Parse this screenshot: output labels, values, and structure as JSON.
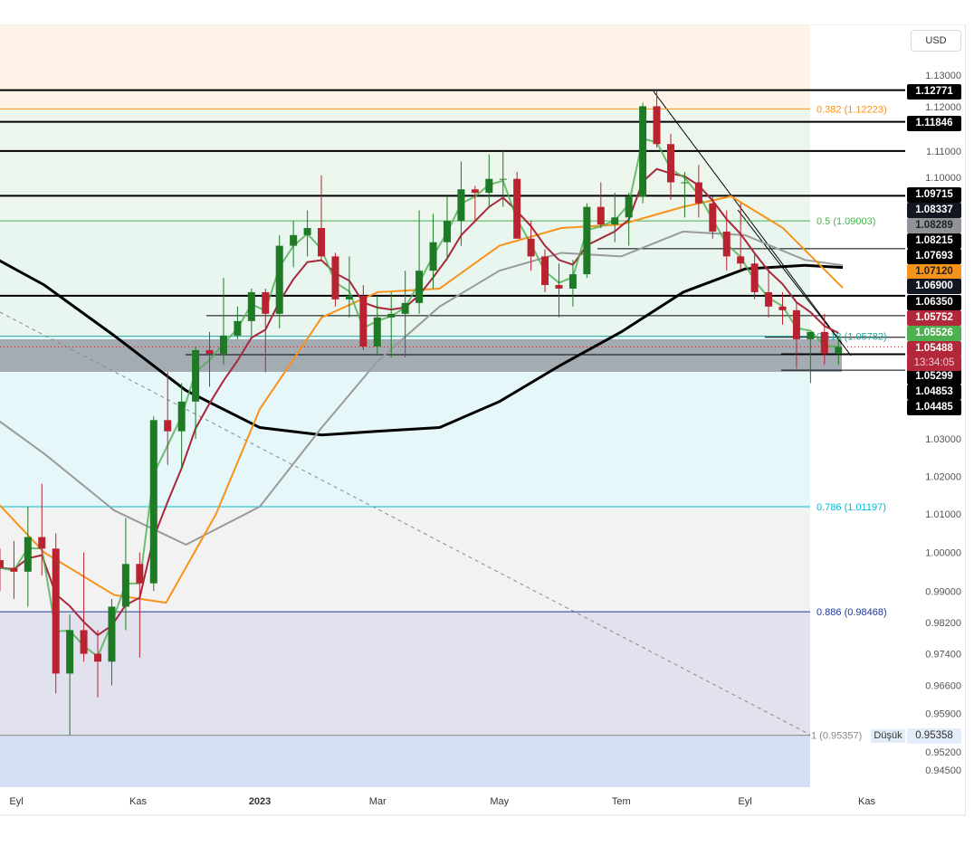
{
  "currency_button": "USD",
  "chart_data": {
    "type": "candlestick",
    "scale": "log",
    "ylim": [
      0.945,
      1.13
    ],
    "x_tick_labels": [
      "Eyl",
      "Kas",
      "2023",
      "Mar",
      "May",
      "Tem",
      "Eyl",
      "Kas"
    ],
    "x_tick_dates": [
      "2022-09-01",
      "2022-11-01",
      "2023-01-01",
      "2023-03-01",
      "2023-05-01",
      "2023-07-01",
      "2023-09-01",
      "2023-11-01"
    ],
    "y_tick_labels": [
      "1.13000",
      "1.12000",
      "1.11000",
      "1.10000",
      "1.03000",
      "1.02000",
      "1.01000",
      "1.00000",
      "0.99000",
      "0.98200",
      "0.97400",
      "0.96600",
      "0.95900",
      "0.95200",
      "0.94500"
    ],
    "ohlc_columns": [
      "date",
      "open",
      "high",
      "low",
      "close"
    ],
    "ohlc": [
      [
        "2022-08-22",
        0.998,
        1.001,
        0.99,
        0.996
      ],
      [
        "2022-08-29",
        0.996,
        1.003,
        0.988,
        0.995
      ],
      [
        "2022-09-05",
        0.995,
        1.012,
        0.986,
        1.004
      ],
      [
        "2022-09-12",
        1.004,
        1.018,
        0.994,
        1.001
      ],
      [
        "2022-09-19",
        1.001,
        1.005,
        0.964,
        0.969
      ],
      [
        "2022-09-26",
        0.969,
        0.984,
        0.9536,
        0.98
      ],
      [
        "2022-10-03",
        0.98,
        1.0,
        0.972,
        0.974
      ],
      [
        "2022-10-10",
        0.974,
        0.98,
        0.963,
        0.972
      ],
      [
        "2022-10-17",
        0.972,
        0.988,
        0.966,
        0.986
      ],
      [
        "2022-10-24",
        0.986,
        1.009,
        0.98,
        0.997
      ],
      [
        "2022-10-31",
        0.997,
        1.0,
        0.973,
        0.992
      ],
      [
        "2022-11-07",
        0.992,
        1.036,
        0.99,
        1.035
      ],
      [
        "2022-11-14",
        1.035,
        1.048,
        1.023,
        1.032
      ],
      [
        "2022-11-21",
        1.032,
        1.045,
        1.022,
        1.04
      ],
      [
        "2022-11-28",
        1.04,
        1.055,
        1.03,
        1.054
      ],
      [
        "2022-12-05",
        1.054,
        1.059,
        1.044,
        1.053
      ],
      [
        "2022-12-12",
        1.053,
        1.074,
        1.05,
        1.058
      ],
      [
        "2022-12-19",
        1.058,
        1.066,
        1.057,
        1.062
      ],
      [
        "2022-12-26",
        1.062,
        1.071,
        1.058,
        1.07
      ],
      [
        "2023-01-02",
        1.07,
        1.071,
        1.048,
        1.064
      ],
      [
        "2023-01-09",
        1.064,
        1.086,
        1.06,
        1.083
      ],
      [
        "2023-01-16",
        1.083,
        1.09,
        1.077,
        1.086
      ],
      [
        "2023-01-23",
        1.086,
        1.093,
        1.08,
        1.088
      ],
      [
        "2023-01-30",
        1.088,
        1.103,
        1.079,
        1.08
      ],
      [
        "2023-02-06",
        1.08,
        1.081,
        1.066,
        1.068
      ],
      [
        "2023-02-13",
        1.068,
        1.08,
        1.063,
        1.069
      ],
      [
        "2023-02-20",
        1.069,
        1.072,
        1.054,
        1.055
      ],
      [
        "2023-02-27",
        1.055,
        1.069,
        1.053,
        1.063
      ],
      [
        "2023-03-06",
        1.063,
        1.07,
        1.052,
        1.064
      ],
      [
        "2023-03-13",
        1.064,
        1.076,
        1.052,
        1.067
      ],
      [
        "2023-03-20",
        1.067,
        1.093,
        1.064,
        1.076
      ],
      [
        "2023-03-27",
        1.076,
        1.092,
        1.071,
        1.084
      ],
      [
        "2023-04-03",
        1.084,
        1.097,
        1.079,
        1.09
      ],
      [
        "2023-04-10",
        1.09,
        1.107,
        1.083,
        1.099
      ],
      [
        "2023-04-17",
        1.099,
        1.1,
        1.09,
        1.098
      ],
      [
        "2023-04-24",
        1.098,
        1.109,
        1.094,
        1.102
      ],
      [
        "2023-05-01",
        1.102,
        1.11,
        1.094,
        1.102
      ],
      [
        "2023-05-08",
        1.102,
        1.104,
        1.085,
        1.085
      ],
      [
        "2023-05-15",
        1.085,
        1.09,
        1.076,
        1.08
      ],
      [
        "2023-05-22",
        1.08,
        1.082,
        1.07,
        1.072
      ],
      [
        "2023-05-29",
        1.072,
        1.078,
        1.063,
        1.071
      ],
      [
        "2023-06-05",
        1.071,
        1.079,
        1.066,
        1.075
      ],
      [
        "2023-06-12",
        1.075,
        1.095,
        1.074,
        1.094
      ],
      [
        "2023-06-19",
        1.094,
        1.101,
        1.088,
        1.089
      ],
      [
        "2023-06-26",
        1.089,
        1.098,
        1.084,
        1.091
      ],
      [
        "2023-07-03",
        1.091,
        1.098,
        1.083,
        1.097
      ],
      [
        "2023-07-10",
        1.097,
        1.124,
        1.095,
        1.123
      ],
      [
        "2023-07-17",
        1.123,
        1.1277,
        1.111,
        1.112
      ],
      [
        "2023-07-24",
        1.112,
        1.115,
        1.096,
        1.101
      ],
      [
        "2023-07-31",
        1.101,
        1.104,
        1.091,
        1.101
      ],
      [
        "2023-08-07",
        1.101,
        1.106,
        1.091,
        1.095
      ],
      [
        "2023-08-14",
        1.095,
        1.097,
        1.085,
        1.087
      ],
      [
        "2023-08-21",
        1.087,
        1.093,
        1.076,
        1.08
      ],
      [
        "2023-08-28",
        1.08,
        1.095,
        1.076,
        1.078
      ],
      [
        "2023-09-04",
        1.078,
        1.081,
        1.068,
        1.07
      ],
      [
        "2023-09-11",
        1.07,
        1.077,
        1.063,
        1.066
      ],
      [
        "2023-09-18",
        1.066,
        1.07,
        1.061,
        1.065
      ],
      [
        "2023-09-25",
        1.065,
        1.067,
        1.049,
        1.057
      ],
      [
        "2023-10-02",
        1.057,
        1.059,
        1.045,
        1.059
      ],
      [
        "2023-10-09",
        1.059,
        1.064,
        1.05,
        1.053
      ],
      [
        "2023-10-16",
        1.053,
        1.0575,
        1.05,
        1.0549
      ]
    ],
    "moving_averages": [
      {
        "color": "#000000",
        "points": [
          [
            "2022-08-10",
            1.083
          ],
          [
            "2022-09-15",
            1.072
          ],
          [
            "2022-10-20",
            1.058
          ],
          [
            "2022-11-25",
            1.043
          ],
          [
            "2023-01-01",
            1.033
          ],
          [
            "2023-02-01",
            1.031
          ],
          [
            "2023-03-01",
            1.032
          ],
          [
            "2023-04-01",
            1.033
          ],
          [
            "2023-05-01",
            1.04
          ],
          [
            "2023-06-01",
            1.05
          ],
          [
            "2023-07-01",
            1.059
          ],
          [
            "2023-08-01",
            1.07
          ],
          [
            "2023-09-01",
            1.0765
          ],
          [
            "2023-10-01",
            1.0775
          ],
          [
            "2023-10-20",
            1.0769
          ]
        ]
      },
      {
        "color": "#9a9a9a",
        "points": [
          [
            "2022-08-10",
            1.04
          ],
          [
            "2022-09-15",
            1.026
          ],
          [
            "2022-10-20",
            1.011
          ],
          [
            "2022-11-25",
            1.002
          ],
          [
            "2023-01-01",
            1.012
          ],
          [
            "2023-02-01",
            1.033
          ],
          [
            "2023-03-01",
            1.051
          ],
          [
            "2023-04-01",
            1.066
          ],
          [
            "2023-05-01",
            1.076
          ],
          [
            "2023-06-01",
            1.081
          ],
          [
            "2023-07-01",
            1.08
          ],
          [
            "2023-08-01",
            1.087
          ],
          [
            "2023-09-01",
            1.086
          ],
          [
            "2023-10-01",
            1.079
          ],
          [
            "2023-10-20",
            1.0775
          ]
        ]
      },
      {
        "color": "#f7931a",
        "points": [
          [
            "2022-08-10",
            1.02
          ],
          [
            "2022-09-15",
            1.0
          ],
          [
            "2022-10-20",
            0.989
          ],
          [
            "2022-11-15",
            0.987
          ],
          [
            "2022-12-10",
            1.01
          ],
          [
            "2023-01-01",
            1.038
          ],
          [
            "2023-02-01",
            1.063
          ],
          [
            "2023-03-01",
            1.07
          ],
          [
            "2023-04-01",
            1.071
          ],
          [
            "2023-05-01",
            1.083
          ],
          [
            "2023-06-01",
            1.088
          ],
          [
            "2023-07-01",
            1.089
          ],
          [
            "2023-08-01",
            1.094
          ],
          [
            "2023-08-25",
            1.097
          ],
          [
            "2023-09-20",
            1.088
          ],
          [
            "2023-10-20",
            1.0712
          ]
        ]
      }
    ],
    "horizontal_levels": [
      "1.12771",
      "1.11846",
      "1.11000",
      "1.09715",
      "1.08215",
      "1.06900",
      "1.06350",
      "1.05752",
      "1.05299",
      "1.04853"
    ],
    "fib_levels": [
      {
        "label": "0.382 (1.12223)",
        "price": 1.12223,
        "color": "#f7931a"
      },
      {
        "label": "0.5 (1.09003)",
        "price": 1.09003,
        "color": "#4caf50"
      },
      {
        "label": "0.618 (1.05782)",
        "price": 1.05782,
        "color": "#26a69a"
      },
      {
        "label": "0.786 (1.01197)",
        "price": 1.01197,
        "color": "#00bcd4"
      },
      {
        "label": "0.886 (0.98468)",
        "price": 0.98468,
        "color": "#1e3a9a"
      },
      {
        "label": "1 (0.95357)",
        "price": 0.95357,
        "color": "#888888"
      }
    ],
    "price_labels": [
      {
        "text": "1.12771",
        "bg": "#000000",
        "fg": "#ffffff"
      },
      {
        "text": "1.11846",
        "bg": "#000000",
        "fg": "#ffffff"
      },
      {
        "text": "1.09715",
        "bg": "#000000",
        "fg": "#ffffff"
      },
      {
        "text": "1.08337",
        "bg": "#131722",
        "fg": "#ffffff"
      },
      {
        "text": "1.08289",
        "bg": "#8f9297",
        "fg": "#222222"
      },
      {
        "text": "1.08215",
        "bg": "#000000",
        "fg": "#ffffff"
      },
      {
        "text": "1.07693",
        "bg": "#000000",
        "fg": "#ffffff"
      },
      {
        "text": "1.07120",
        "bg": "#f7931a",
        "fg": "#222222"
      },
      {
        "text": "1.06900",
        "bg": "#131722",
        "fg": "#ffffff"
      },
      {
        "text": "1.06350",
        "bg": "#000000",
        "fg": "#ffffff"
      },
      {
        "text": "1.05752",
        "bg": "#b2283a",
        "fg": "#ffffff"
      },
      {
        "text": "1.05526",
        "bg": "#4caf50",
        "fg": "#ffffff"
      },
      {
        "text": "1.05488",
        "bg": "#b2283a",
        "fg": "#ffffff"
      },
      {
        "text": "1.05299",
        "bg": "#000000",
        "fg": "#ffffff"
      },
      {
        "text": "1.04853",
        "bg": "#000000",
        "fg": "#ffffff"
      },
      {
        "text": "1.04485",
        "bg": "#000000",
        "fg": "#ffffff"
      }
    ],
    "countdown": "13:34:05",
    "low_marker": {
      "tag": "Düşük",
      "value": "0.95358"
    },
    "colors": {
      "up": "#1f7a25",
      "down": "#b8232f",
      "ema_fast": "#4caf50",
      "ema_slow": "#a8283a"
    }
  }
}
